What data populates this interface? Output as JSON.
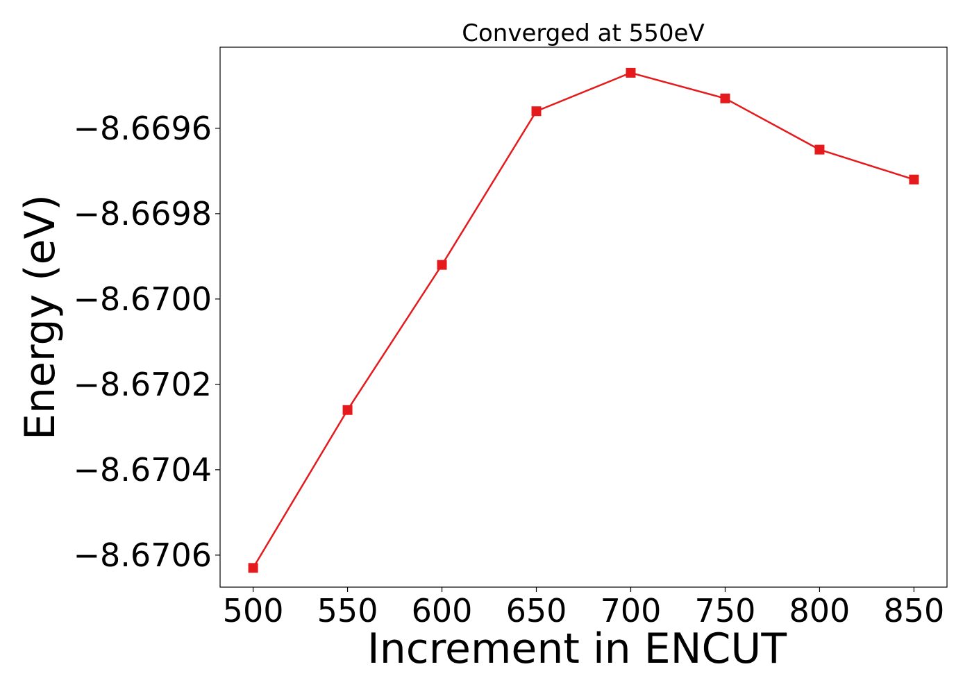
{
  "chart_data": {
    "type": "line",
    "title": "Converged at 550eV",
    "xlabel": "Increment in ENCUT",
    "ylabel": "Energy (eV)",
    "x": [
      500,
      550,
      600,
      650,
      700,
      750,
      800,
      850
    ],
    "series": [
      {
        "values": [
          -8.67063,
          -8.67026,
          -8.66992,
          -8.66956,
          -8.66947,
          -8.66953,
          -8.66965,
          -8.66972
        ],
        "color": "#e41a1c",
        "marker": "square"
      }
    ],
    "xticks": [
      500,
      550,
      600,
      650,
      700,
      750,
      800,
      850
    ],
    "xtick_labels": [
      "500",
      "550",
      "600",
      "650",
      "700",
      "750",
      "800",
      "850"
    ],
    "yticks": [
      -8.6706,
      -8.6704,
      -8.6702,
      -8.67,
      -8.6698,
      -8.6696
    ],
    "ytick_labels": [
      "−8.6706",
      "−8.6704",
      "−8.6702",
      "−8.6700",
      "−8.6698",
      "−8.6696"
    ],
    "xlim": [
      482.5,
      867.5
    ],
    "ylim": [
      -8.670675,
      -8.66941
    ],
    "grid": false,
    "legend": "none"
  }
}
